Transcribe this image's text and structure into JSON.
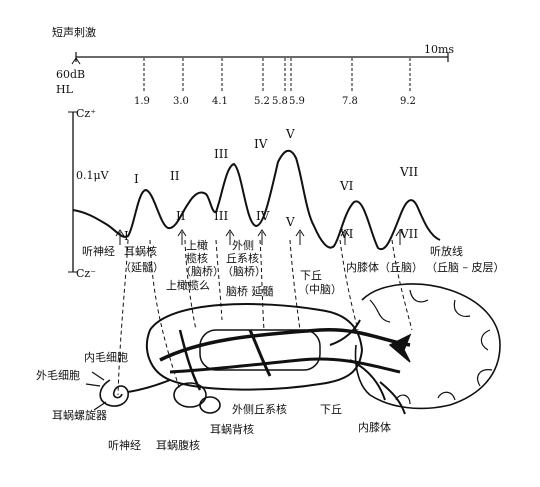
{
  "stimulus": {
    "title": "短声刺激",
    "end_time": "10ms",
    "level_line1": "60dB",
    "level_line2": "HL",
    "tick_labels": [
      "1.9",
      "3.0",
      "4.1",
      "5.2",
      "5.8",
      "5.9",
      "7.8",
      "9.2"
    ]
  },
  "waveform": {
    "cz_top": "Cz⁺",
    "cz_bottom": "Cz⁻",
    "amplitude": "0.1μV",
    "peaks": [
      "I",
      "II",
      "III",
      "IV",
      "V",
      "VI",
      "VII"
    ],
    "lower_markers": [
      "I",
      "II",
      "III",
      "IV",
      "V",
      "VI",
      "VII"
    ]
  },
  "generators": {
    "auditory_nerve": "听神经",
    "cochlear_nucleus": "耳蜗核",
    "medulla_paren": "（延髓）",
    "superior_olive_1": "上橄",
    "superior_olive_2": "榄核",
    "pons_paren_1": "（脑桥）",
    "superior_olive_full": "上橄榄么",
    "lateral_lemniscus_1": "外侧",
    "lateral_lemniscus_2": "丘系核",
    "pons_paren_2": "（脑桥）",
    "pons_medulla": "脑桥  延髓",
    "inferior_colliculus": "下丘",
    "midbrain_paren": "（中脑）",
    "medial_geniculate": "内膝体（丘脑）",
    "auditory_radiation": "听放线",
    "cortex_paren": "（丘脑 – 皮层）"
  },
  "anatomy": {
    "inner_hair_cell": "内毛细胞",
    "outer_hair_cell": "外毛细胞",
    "cochlea": "耳蜗螺旋器",
    "auditory_nerve": "听神经",
    "ventral_cochlear_nucleus": "耳蜗腹核",
    "dorsal_cochlear_nucleus": "耳蜗背核",
    "lateral_lemniscus": "外侧丘系核",
    "inferior_colliculus": "下丘",
    "medial_geniculate": "内膝体"
  }
}
